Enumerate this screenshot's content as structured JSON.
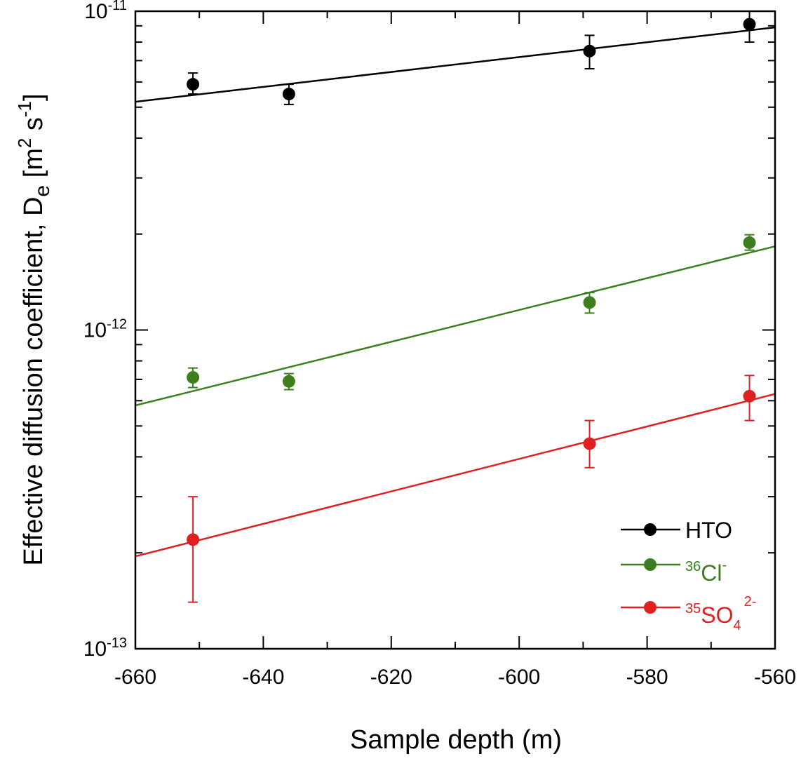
{
  "chart_data": {
    "type": "scatter",
    "x_scale": "linear",
    "y_scale": "log",
    "xlim": [
      -660,
      -560
    ],
    "ylim": [
      1e-13,
      1e-11
    ],
    "x_ticks": [
      -660,
      -640,
      -620,
      -600,
      -580,
      -560
    ],
    "x_tick_labels": [
      "-660",
      "-640",
      "-620",
      "-600",
      "-580",
      "-560"
    ],
    "y_ticks": [
      1e-13,
      1e-12,
      1e-11
    ],
    "y_tick_labels": [
      {
        "base": "10",
        "exp": "-13"
      },
      {
        "base": "10",
        "exp": "-12"
      },
      {
        "base": "10",
        "exp": "-11"
      }
    ],
    "xlabel": "Sample depth   (m)",
    "ylabel": {
      "main": "Effective diffusion coefficient, D",
      "sub": "e",
      "units_open": "[m",
      "units_sup1": "2",
      "units_mid": " s",
      "units_sup2": "-1",
      "units_close": "]"
    },
    "grid": false,
    "legend_position": "bottom-right",
    "series": [
      {
        "key": "hto",
        "legend": {
          "main": "HTO"
        },
        "color": "#000000",
        "points": [
          {
            "x": -651,
            "y": 5.9e-12,
            "err_low": 5.5e-12,
            "err_high": 6.4e-12
          },
          {
            "x": -636,
            "y": 5.5e-12,
            "err_low": 5.1e-12,
            "err_high": 5.9e-12
          },
          {
            "x": -589,
            "y": 7.5e-12,
            "err_low": 6.6e-12,
            "err_high": 8.4e-12
          },
          {
            "x": -564,
            "y": 9.1e-12,
            "err_low": 8e-12,
            "err_high": 1e-11
          }
        ],
        "fit": [
          {
            "x": -660,
            "y": 5.2e-12
          },
          {
            "x": -560,
            "y": 8.9e-12
          }
        ]
      },
      {
        "key": "cl36",
        "legend": {
          "sup_pre": "36",
          "main": "Cl",
          "sup_post": "-"
        },
        "color": "#3d7f1f",
        "points": [
          {
            "x": -651,
            "y": 7.1e-13,
            "err_low": 6.6e-13,
            "err_high": 7.6e-13
          },
          {
            "x": -636,
            "y": 6.9e-13,
            "err_low": 6.5e-13,
            "err_high": 7.3e-13
          },
          {
            "x": -589,
            "y": 1.22e-12,
            "err_low": 1.13e-12,
            "err_high": 1.31e-12
          },
          {
            "x": -564,
            "y": 1.88e-12,
            "err_low": 1.78e-12,
            "err_high": 1.99e-12
          }
        ],
        "fit": [
          {
            "x": -660,
            "y": 5.8e-13
          },
          {
            "x": -560,
            "y": 1.83e-12
          }
        ]
      },
      {
        "key": "so4_35",
        "legend": {
          "sup_pre": "35",
          "main": "SO",
          "sub": "4",
          "sup_post": "2-"
        },
        "color": "#e02020",
        "points": [
          {
            "x": -651,
            "y": 2.2e-13,
            "err_low": 1.4e-13,
            "err_high": 3e-13
          },
          {
            "x": -589,
            "y": 4.4e-13,
            "err_low": 3.7e-13,
            "err_high": 5.2e-13
          },
          {
            "x": -564,
            "y": 6.2e-13,
            "err_low": 5.2e-13,
            "err_high": 7.2e-13
          }
        ],
        "fit": [
          {
            "x": -660,
            "y": 1.95e-13
          },
          {
            "x": -560,
            "y": 6.3e-13
          }
        ]
      }
    ]
  }
}
